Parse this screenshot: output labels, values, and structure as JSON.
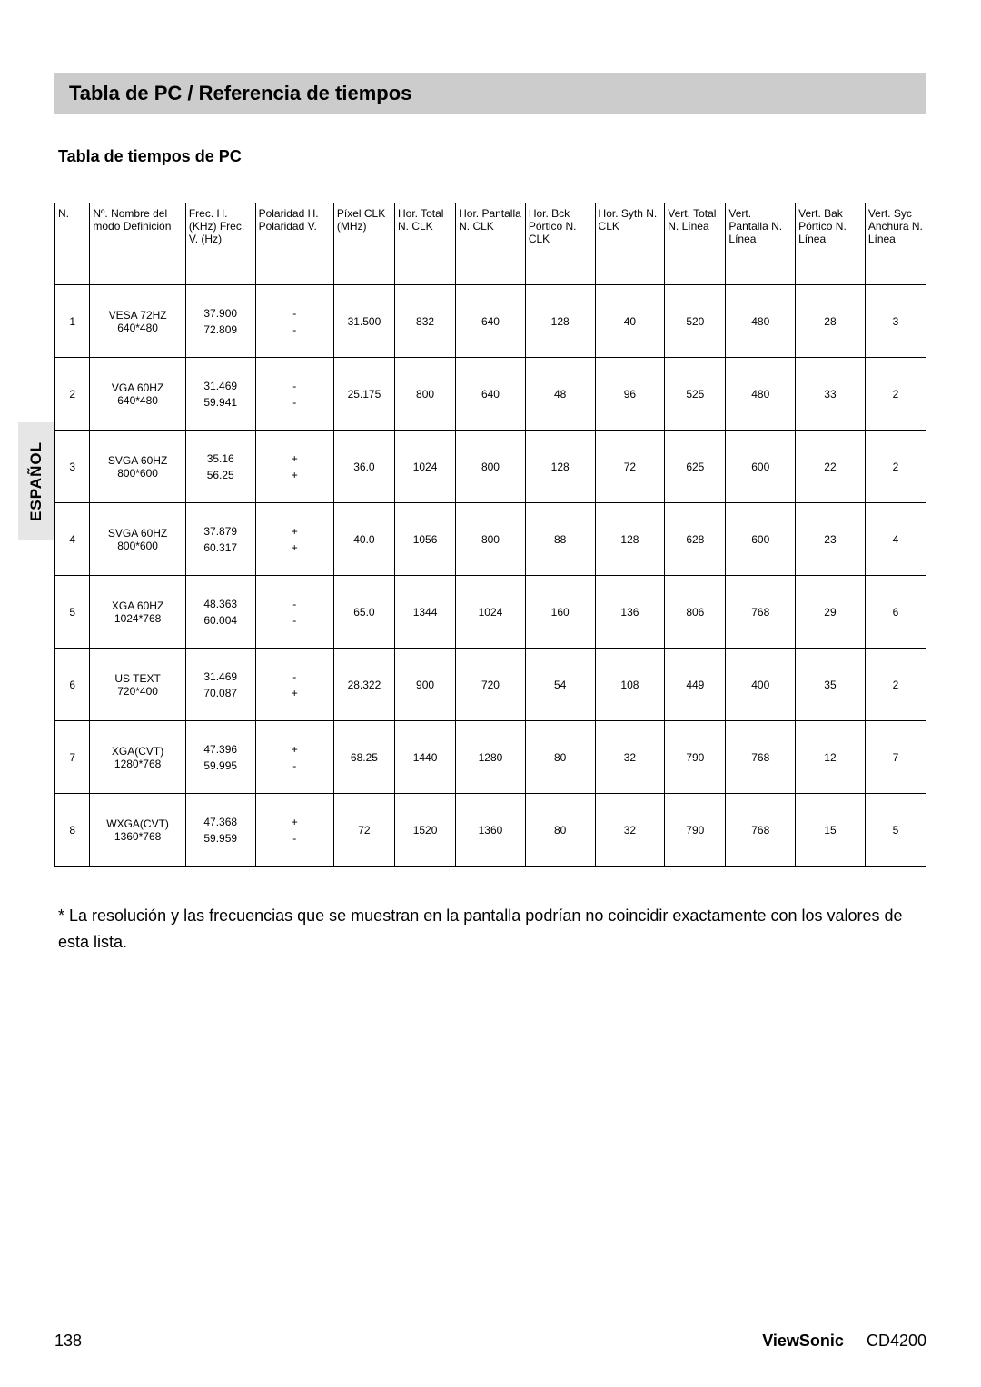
{
  "side_tab": "ESPAÑOL",
  "title": "Tabla de PC / Referencia de tiempos",
  "subtitle": "Tabla de tiempos de PC",
  "footnote": "* La resolución y las frecuencias que se muestran en la pantalla podrían no coincidir exactamente con los valores de esta lista.",
  "footer": {
    "page_number": "138",
    "brand": "ViewSonic",
    "model": "CD4200"
  },
  "table": {
    "column_widths_pct": [
      4,
      11,
      8,
      9,
      7,
      7,
      8,
      8,
      8,
      7,
      8,
      8,
      7
    ],
    "headers": [
      "N.",
      "Nº. Nombre del modo Definición",
      "Frec. H. (KHz) Frec. V. (Hz)",
      "Polaridad H. Polaridad V.",
      "Píxel CLK (MHz)",
      "Hor. Total N. CLK",
      "Hor. Pantalla N. CLK",
      "Hor. Bck Pórtico N. CLK",
      "Hor. Syth N. CLK",
      "Vert. Total N. Línea",
      "Vert. Pantalla N. Línea",
      "Vert. Bak Pórtico N. Línea",
      "Vert. Syc Anchura N. Línea"
    ],
    "rows": [
      {
        "n": "1",
        "name_l1": "VESA 72HZ",
        "name_l2": "640*480",
        "freq_h": "37.900",
        "freq_v": "72.809",
        "pol_h": "-",
        "pol_v": "-",
        "pix_clk": "31.500",
        "h_total": "832",
        "h_disp": "640",
        "h_bck": "128",
        "h_syth": "40",
        "v_total": "520",
        "v_disp": "480",
        "v_bak": "28",
        "v_syc": "3"
      },
      {
        "n": "2",
        "name_l1": "VGA 60HZ",
        "name_l2": "640*480",
        "freq_h": "31.469",
        "freq_v": "59.941",
        "pol_h": "-",
        "pol_v": "-",
        "pix_clk": "25.175",
        "h_total": "800",
        "h_disp": "640",
        "h_bck": "48",
        "h_syth": "96",
        "v_total": "525",
        "v_disp": "480",
        "v_bak": "33",
        "v_syc": "2"
      },
      {
        "n": "3",
        "name_l1": "SVGA 60HZ",
        "name_l2": "800*600",
        "freq_h": "35.16",
        "freq_v": "56.25",
        "pol_h": "+",
        "pol_v": "+",
        "pix_clk": "36.0",
        "h_total": "1024",
        "h_disp": "800",
        "h_bck": "128",
        "h_syth": "72",
        "v_total": "625",
        "v_disp": "600",
        "v_bak": "22",
        "v_syc": "2"
      },
      {
        "n": "4",
        "name_l1": "SVGA 60HZ",
        "name_l2": "800*600",
        "freq_h": "37.879",
        "freq_v": "60.317",
        "pol_h": "+",
        "pol_v": "+",
        "pix_clk": "40.0",
        "h_total": "1056",
        "h_disp": "800",
        "h_bck": "88",
        "h_syth": "128",
        "v_total": "628",
        "v_disp": "600",
        "v_bak": "23",
        "v_syc": "4"
      },
      {
        "n": "5",
        "name_l1": "XGA 60HZ",
        "name_l2": "1024*768",
        "freq_h": "48.363",
        "freq_v": "60.004",
        "pol_h": "-",
        "pol_v": "-",
        "pix_clk": "65.0",
        "h_total": "1344",
        "h_disp": "1024",
        "h_bck": "160",
        "h_syth": "136",
        "v_total": "806",
        "v_disp": "768",
        "v_bak": "29",
        "v_syc": "6"
      },
      {
        "n": "6",
        "name_l1": "US TEXT",
        "name_l2": "720*400",
        "freq_h": "31.469",
        "freq_v": "70.087",
        "pol_h": "-",
        "pol_v": "+",
        "pix_clk": "28.322",
        "h_total": "900",
        "h_disp": "720",
        "h_bck": "54",
        "h_syth": "108",
        "v_total": "449",
        "v_disp": "400",
        "v_bak": "35",
        "v_syc": "2"
      },
      {
        "n": "7",
        "name_l1": "XGA(CVT)",
        "name_l2": "1280*768",
        "freq_h": "47.396",
        "freq_v": "59.995",
        "pol_h": "+",
        "pol_v": "-",
        "pix_clk": "68.25",
        "h_total": "1440",
        "h_disp": "1280",
        "h_bck": "80",
        "h_syth": "32",
        "v_total": "790",
        "v_disp": "768",
        "v_bak": "12",
        "v_syc": "7"
      },
      {
        "n": "8",
        "name_l1": "WXGA(CVT)",
        "name_l2": "1360*768",
        "freq_h": "47.368",
        "freq_v": "59.959",
        "pol_h": "+",
        "pol_v": "-",
        "pix_clk": "72",
        "h_total": "1520",
        "h_disp": "1360",
        "h_bck": "80",
        "h_syth": "32",
        "v_total": "790",
        "v_disp": "768",
        "v_bak": "15",
        "v_syc": "5"
      }
    ]
  }
}
